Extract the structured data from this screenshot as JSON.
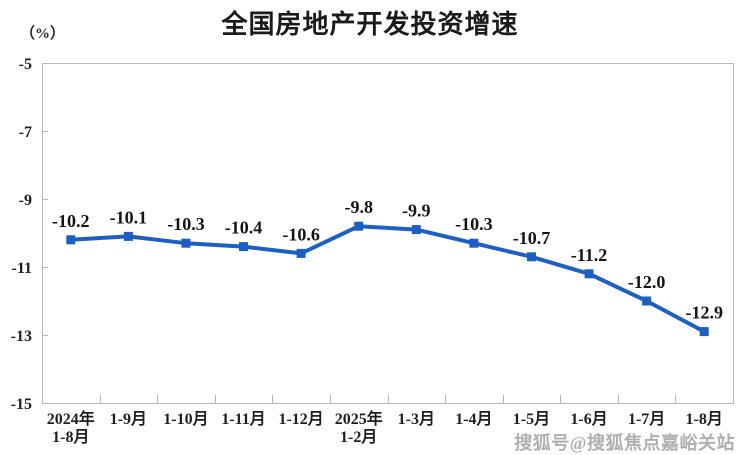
{
  "chart_data": {
    "type": "line",
    "title": "全国房地产开发投资增速",
    "unit_label": "（%）",
    "categories": [
      "2024年\n1-8月",
      "1-9月",
      "1-10月",
      "1-11月",
      "1-12月",
      "2025年\n1-2月",
      "1-3月",
      "1-4月",
      "1-5月",
      "1-6月",
      "1-7月",
      "1-8月"
    ],
    "values": [
      -10.2,
      -10.1,
      -10.3,
      -10.4,
      -10.6,
      -9.8,
      -9.9,
      -10.3,
      -10.7,
      -11.2,
      -12.0,
      -12.9
    ],
    "data_labels": [
      "-10.2",
      "-10.1",
      "-10.3",
      "-10.4",
      "-10.6",
      "-9.8",
      "-9.9",
      "-10.3",
      "-10.7",
      "-11.2",
      "-12.0",
      "-12.9"
    ],
    "ylim": [
      -15,
      -5
    ],
    "yticks": [
      -5,
      -7,
      -9,
      -11,
      -13,
      -15
    ],
    "grid": false,
    "legend": null,
    "line_color": "#1d5fc2",
    "marker": "square",
    "axis_color": "#b8b8b8",
    "label_color": "#1f1f1f"
  },
  "watermark": "搜狐号@搜狐焦点嘉峪关站"
}
